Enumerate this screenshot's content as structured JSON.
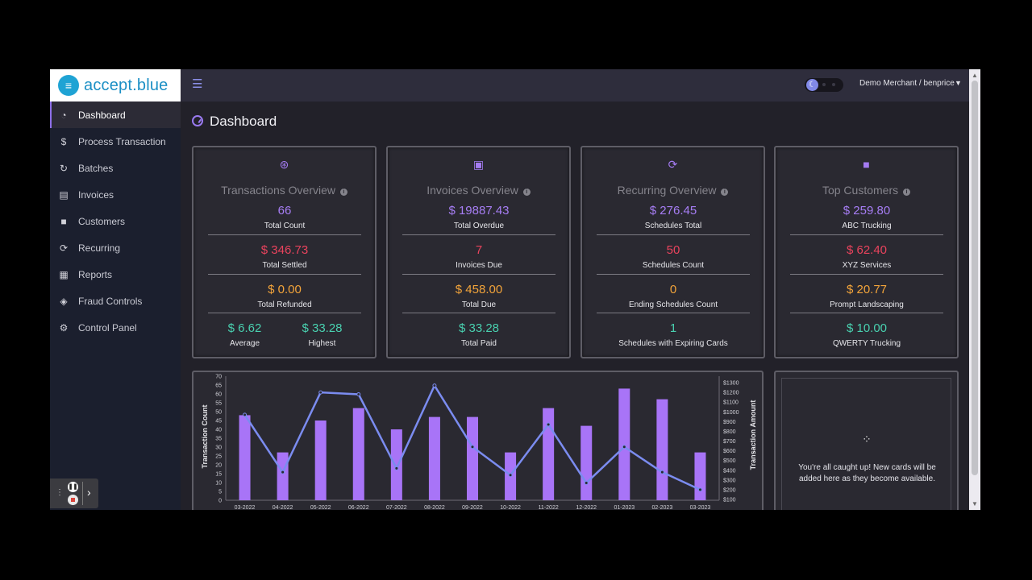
{
  "app": {
    "brand": "accept.blue",
    "merchant": "Demo Merchant / benprice"
  },
  "sidebar": {
    "items": [
      {
        "label": "Dashboard",
        "icon": "dashboard-icon"
      },
      {
        "label": "Process Transaction",
        "icon": "dollar-circle-icon"
      },
      {
        "label": "Batches",
        "icon": "batches-icon"
      },
      {
        "label": "Invoices",
        "icon": "invoice-icon"
      },
      {
        "label": "Customers",
        "icon": "briefcase-icon"
      },
      {
        "label": "Recurring",
        "icon": "refresh-icon"
      },
      {
        "label": "Reports",
        "icon": "clipboard-icon"
      },
      {
        "label": "Fraud Controls",
        "icon": "shield-icon"
      },
      {
        "label": "Control Panel",
        "icon": "gear-icon"
      }
    ]
  },
  "page": {
    "title": "Dashboard"
  },
  "cards": {
    "transactions": {
      "title": "Transactions Overview",
      "total_count": "66",
      "total_count_label": "Total Count",
      "total_settled": "$ 346.73",
      "total_settled_label": "Total Settled",
      "total_refunded": "$ 0.00",
      "total_refunded_label": "Total Refunded",
      "average": "$ 6.62",
      "average_label": "Average",
      "highest": "$ 33.28",
      "highest_label": "Highest"
    },
    "invoices": {
      "title": "Invoices Overview",
      "total_overdue": "$ 19887.43",
      "total_overdue_label": "Total Overdue",
      "invoices_due": "7",
      "invoices_due_label": "Invoices Due",
      "total_due": "$ 458.00",
      "total_due_label": "Total Due",
      "total_paid": "$ 33.28",
      "total_paid_label": "Total Paid"
    },
    "recurring": {
      "title": "Recurring Overview",
      "schedules_total": "$ 276.45",
      "schedules_total_label": "Schedules Total",
      "schedules_count": "50",
      "schedules_count_label": "Schedules Count",
      "ending_count": "0",
      "ending_count_label": "Ending Schedules Count",
      "expiring": "1",
      "expiring_label": "Schedules with Expiring Cards"
    },
    "customers": {
      "title": "Top Customers",
      "c1_amount": "$ 259.80",
      "c1_name": "ABC Trucking",
      "c2_amount": "$ 62.40",
      "c2_name": "XYZ Services",
      "c3_amount": "$ 20.77",
      "c3_name": "Prompt Landscaping",
      "c4_amount": "$ 10.00",
      "c4_name": "QWERTY Trucking"
    }
  },
  "notifications": {
    "empty_text": "You're all caught up! New cards will be added here as they become available."
  },
  "colors": {
    "accent": "#a77ef5",
    "red": "#e9435d",
    "orange": "#f3a43a",
    "teal": "#49d1b0",
    "bar": "#a874f7",
    "line": "#7b8cf0"
  },
  "chart_data": {
    "type": "bar",
    "categories": [
      "03-2022",
      "04-2022",
      "05-2022",
      "06-2022",
      "07-2022",
      "08-2022",
      "09-2022",
      "10-2022",
      "11-2022",
      "12-2022",
      "01-2023",
      "02-2023",
      "03-2023"
    ],
    "series": [
      {
        "name": "Transaction Count",
        "type": "bar",
        "axis": "left",
        "values": [
          48,
          27,
          45,
          52,
          40,
          47,
          47,
          27,
          52,
          42,
          63,
          57,
          27
        ]
      },
      {
        "name": "Transaction Amount",
        "type": "line",
        "axis": "right",
        "values": [
          970,
          380,
          1200,
          1180,
          420,
          1270,
          640,
          350,
          870,
          270,
          640,
          380,
          200
        ]
      }
    ],
    "ylabel": "Transaction Count",
    "y2label": "Transaction Amount",
    "ylim": [
      0,
      70
    ],
    "yticks": [
      0,
      5,
      10,
      15,
      20,
      25,
      30,
      35,
      40,
      45,
      50,
      55,
      60,
      65,
      70
    ],
    "y2lim": [
      100,
      1300
    ],
    "y2ticks": [
      "$100",
      "$200",
      "$300",
      "$400",
      "$500",
      "$600",
      "$700",
      "$800",
      "$900",
      "$1000",
      "$1100",
      "$1200",
      "$1300"
    ],
    "grid": false
  }
}
